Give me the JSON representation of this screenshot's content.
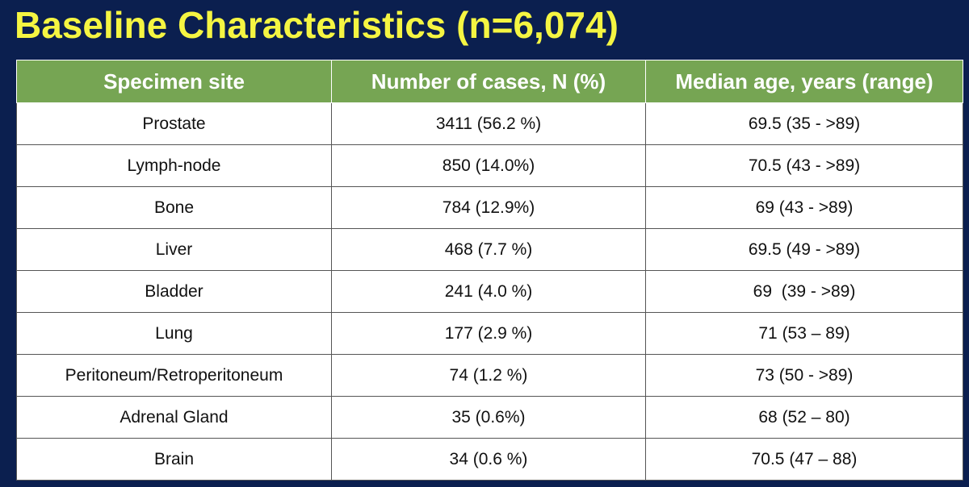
{
  "header": {
    "title": "Baseline Characteristics (n=6,074)"
  },
  "table": {
    "columns": [
      "Specimen site",
      "Number of cases, N (%)",
      "Median age, years (range)"
    ],
    "rows": [
      [
        "Prostate",
        "3411 (56.2 %)",
        "69.5 (35 - >89)"
      ],
      [
        "Lymph-node",
        "850 (14.0%)",
        "70.5 (43 - >89)"
      ],
      [
        "Bone",
        "784 (12.9%)",
        "69 (43 - >89)"
      ],
      [
        "Liver",
        "468 (7.7 %)",
        "69.5 (49 - >89)"
      ],
      [
        "Bladder",
        "241 (4.0 %)",
        "69  (39 - >89)"
      ],
      [
        "Lung",
        "177 (2.9 %)",
        "71 (53 – 89)"
      ],
      [
        "Peritoneum/Retroperitoneum",
        "74 (1.2 %)",
        "73 (50 - >89)"
      ],
      [
        "Adrenal Gland",
        "35 (0.6%)",
        "68 (52 – 80)"
      ],
      [
        "Brain",
        "34 (0.6 %)",
        "70.5 (47 – 88)"
      ]
    ]
  }
}
